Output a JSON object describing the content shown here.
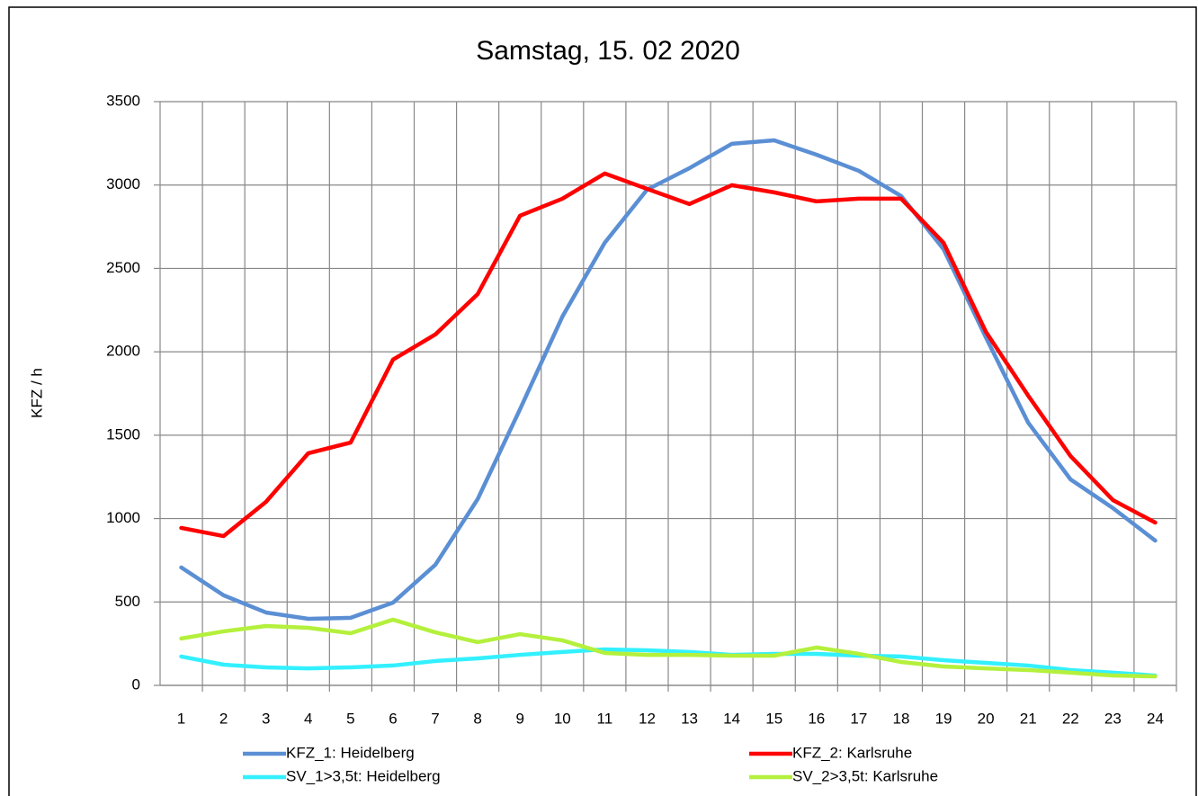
{
  "chart_data": {
    "type": "line",
    "title": "Samstag, 15. 02 2020",
    "y_label": "KFZ / h",
    "categories": [
      "1",
      "2",
      "3",
      "4",
      "5",
      "6",
      "7",
      "8",
      "9",
      "10",
      "11",
      "12",
      "13",
      "14",
      "15",
      "16",
      "17",
      "18",
      "19",
      "20",
      "21",
      "22",
      "23",
      "24"
    ],
    "series": [
      {
        "name": "KFZ_1: Heidelberg",
        "color": "#5b8fd4",
        "values": [
          707,
          540,
          437,
          399,
          405,
          496,
          723,
          1117,
          1656,
          2211,
          2654,
          2972,
          3101,
          3247,
          3268,
          3182,
          3085,
          2934,
          2616,
          2087,
          1575,
          1235,
          1063,
          868
        ]
      },
      {
        "name": "KFZ_2: Karlsruhe",
        "color": "#ff0000",
        "values": [
          944,
          895,
          1100,
          1392,
          1456,
          1953,
          2104,
          2346,
          2816,
          2918,
          3069,
          2977,
          2886,
          2999,
          2956,
          2902,
          2918,
          2918,
          2654,
          2120,
          1737,
          1375,
          1111,
          976
        ]
      },
      {
        "name": "SV_1>3,5t: Heidelberg",
        "color": "#33f0ff",
        "values": [
          173,
          124,
          108,
          102,
          108,
          119,
          146,
          162,
          183,
          200,
          216,
          210,
          200,
          183,
          189,
          189,
          178,
          173,
          151,
          135,
          119,
          92,
          76,
          59
        ]
      },
      {
        "name": "SV_2>3,5t: Karlsruhe",
        "color": "#b4f03c",
        "values": [
          281,
          324,
          356,
          345,
          313,
          394,
          318,
          259,
          307,
          270,
          194,
          183,
          183,
          178,
          178,
          227,
          189,
          140,
          113,
          102,
          92,
          76,
          59,
          54
        ]
      }
    ],
    "ylim": [
      0,
      3500
    ],
    "yticks": [
      0,
      500,
      1000,
      1500,
      2000,
      2500,
      3000,
      3500
    ],
    "grid": true
  }
}
